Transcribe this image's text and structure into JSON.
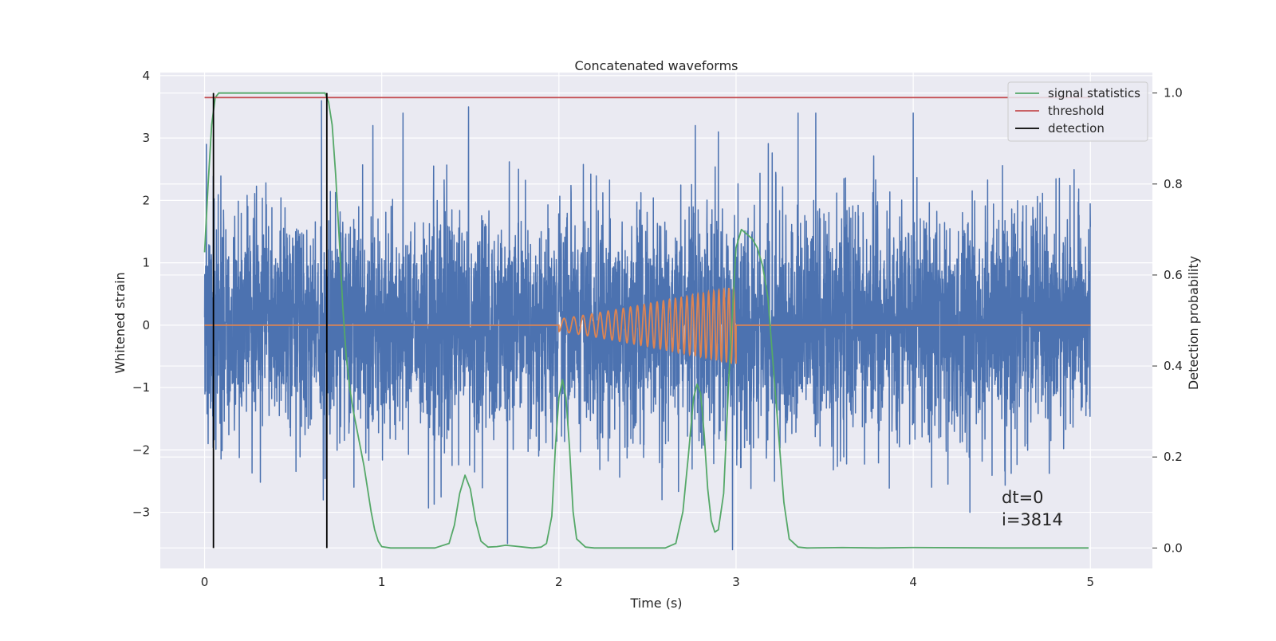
{
  "chart_data": {
    "type": "line",
    "title": "Concatenated waveforms",
    "xlabel": "Time (s)",
    "ylabel_left": "Whitened strain",
    "ylabel_right": "Detection probability",
    "xlim": [
      -0.25,
      5.35
    ],
    "ylim_left": [
      -3.9,
      4.05
    ],
    "ylim_right": [
      -0.045,
      1.045
    ],
    "xticks": [
      0,
      1,
      2,
      3,
      4,
      5
    ],
    "yticks_left": [
      -3,
      -2,
      -1,
      0,
      1,
      2,
      3,
      4
    ],
    "yticks_right": [
      0.0,
      0.2,
      0.4,
      0.6,
      0.8,
      1.0
    ],
    "grid": true,
    "legend_position": "upper-right",
    "legend": [
      "signal statistics",
      "threshold",
      "detection"
    ],
    "annotations": [
      "dt=0",
      "i=3814"
    ],
    "series": [
      {
        "name": "",
        "axis": "left",
        "color": "#4c72b0",
        "kind": "noise",
        "x_range": [
          0,
          5
        ],
        "std": 1.0,
        "peak_range": [
          -3.6,
          3.6
        ],
        "spikes": [
          [
            0.01,
            2.9
          ],
          [
            0.02,
            -1.9
          ],
          [
            0.66,
            3.6
          ],
          [
            0.67,
            -2.8
          ],
          [
            0.95,
            3.2
          ],
          [
            1.12,
            3.4
          ],
          [
            1.49,
            3.5
          ],
          [
            1.71,
            -3.5
          ],
          [
            2.77,
            3.2
          ],
          [
            2.9,
            3.1
          ],
          [
            2.98,
            -3.6
          ],
          [
            3.35,
            3.4
          ],
          [
            3.45,
            3.4
          ],
          [
            4.0,
            3.4
          ],
          [
            4.32,
            -3.0
          ]
        ]
      },
      {
        "name": "",
        "axis": "left",
        "color": "#dd8452",
        "kind": "chirp",
        "x": [
          0,
          2,
          3,
          5
        ],
        "y": [
          0,
          0,
          0,
          0
        ],
        "chirp_start": 2.0,
        "chirp_end": 3.0,
        "amp_start": 0.1,
        "amp_end": 0.62,
        "freq_start": 17,
        "freq_end": 37
      },
      {
        "name": "signal statistics",
        "axis": "right",
        "color": "#55a868",
        "x": [
          0,
          0.02,
          0.04,
          0.06,
          0.08,
          0.1,
          0.15,
          0.3,
          0.5,
          0.65,
          0.68,
          0.7,
          0.72,
          0.74,
          0.76,
          0.78,
          0.8,
          0.82,
          0.84,
          0.86,
          0.88,
          0.9,
          0.92,
          0.94,
          0.96,
          0.98,
          1.0,
          1.05,
          1.1,
          1.2,
          1.3,
          1.38,
          1.41,
          1.44,
          1.47,
          1.5,
          1.53,
          1.56,
          1.6,
          1.65,
          1.7,
          1.75,
          1.8,
          1.85,
          1.9,
          1.93,
          1.96,
          1.98,
          2.0,
          2.02,
          2.04,
          2.06,
          2.08,
          2.1,
          2.15,
          2.2,
          2.4,
          2.6,
          2.66,
          2.7,
          2.73,
          2.76,
          2.78,
          2.8,
          2.82,
          2.84,
          2.86,
          2.88,
          2.9,
          2.93,
          2.96,
          3.0,
          3.03,
          3.06,
          3.09,
          3.12,
          3.15,
          3.18,
          3.21,
          3.24,
          3.27,
          3.3,
          3.35,
          3.4,
          3.6,
          3.8,
          4.0,
          4.5,
          4.99
        ],
        "y": [
          0.65,
          0.8,
          0.93,
          0.99,
          1.0,
          1.0,
          1.0,
          1.0,
          1.0,
          1.0,
          1.0,
          0.98,
          0.93,
          0.82,
          0.68,
          0.53,
          0.42,
          0.35,
          0.3,
          0.26,
          0.22,
          0.18,
          0.13,
          0.08,
          0.04,
          0.015,
          0.003,
          0.0,
          0.0,
          0.0,
          0.0,
          0.01,
          0.05,
          0.12,
          0.16,
          0.13,
          0.06,
          0.015,
          0.002,
          0.003,
          0.006,
          0.004,
          0.002,
          0.0,
          0.002,
          0.01,
          0.07,
          0.22,
          0.33,
          0.37,
          0.33,
          0.22,
          0.08,
          0.02,
          0.002,
          0.0,
          0.0,
          0.0,
          0.01,
          0.08,
          0.2,
          0.33,
          0.36,
          0.34,
          0.25,
          0.13,
          0.06,
          0.035,
          0.04,
          0.12,
          0.38,
          0.66,
          0.7,
          0.69,
          0.68,
          0.66,
          0.62,
          0.55,
          0.4,
          0.25,
          0.1,
          0.02,
          0.002,
          0.0,
          0.001,
          0.0,
          0.001,
          0.0,
          0.0
        ]
      },
      {
        "name": "threshold",
        "axis": "right",
        "color": "#c44e52",
        "x": [
          0,
          5
        ],
        "y": [
          0.99,
          0.99
        ]
      },
      {
        "name": "detection",
        "axis": "right",
        "color": "#000000",
        "kind": "vlines",
        "x": [
          0.05,
          0.69
        ],
        "ymin": 0.0,
        "ymax": 1.0
      }
    ]
  }
}
